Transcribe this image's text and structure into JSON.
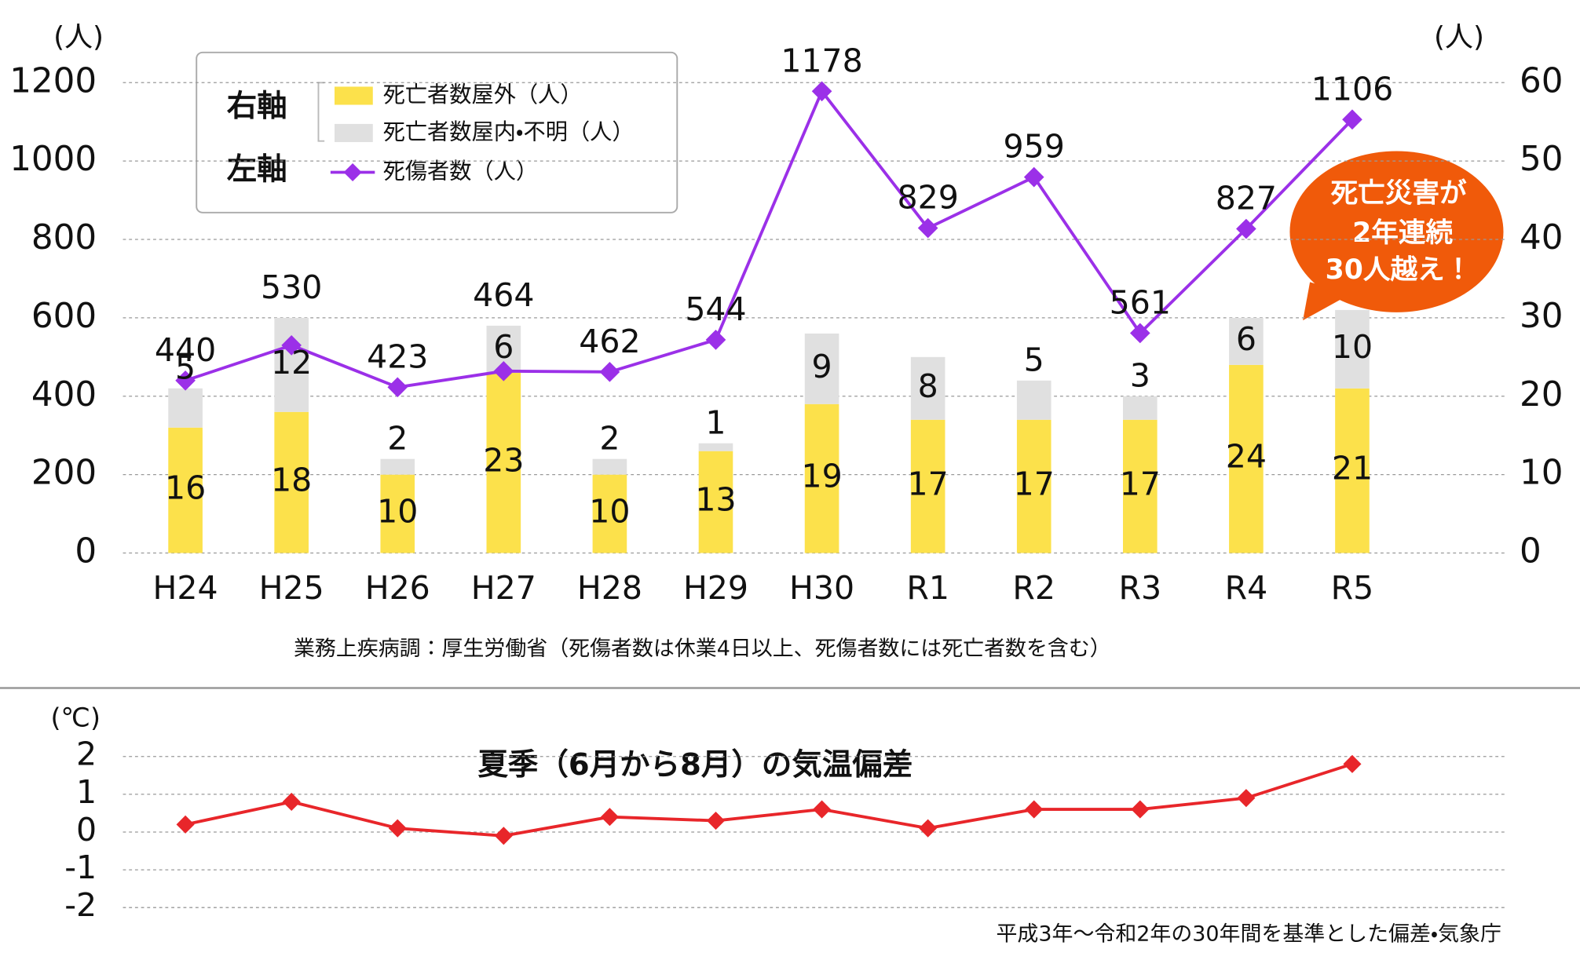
{
  "chart_data": [
    {
      "type": "combo",
      "categories": [
        "H24",
        "H25",
        "H26",
        "H27",
        "H28",
        "H29",
        "H30",
        "R1",
        "R2",
        "R3",
        "R4",
        "R5"
      ],
      "series": [
        {
          "name": "死亡者数屋外（人）",
          "type": "bar",
          "axis": "y2",
          "color": "#fce14b",
          "values": [
            16,
            18,
            10,
            23,
            10,
            13,
            19,
            17,
            17,
            17,
            24,
            21
          ]
        },
        {
          "name": "死亡者数屋内・不明（人）",
          "type": "bar",
          "axis": "y2",
          "color": "#e0e0e0",
          "values": [
            5,
            12,
            2,
            6,
            2,
            1,
            9,
            8,
            5,
            3,
            6,
            10
          ]
        },
        {
          "name": "死傷者数（人）",
          "type": "line",
          "axis": "y",
          "color": "#9b30e8",
          "values": [
            440,
            530,
            423,
            464,
            462,
            544,
            1178,
            829,
            959,
            561,
            827,
            1106
          ]
        }
      ],
      "legend_groups": [
        "右軸",
        "左軸"
      ],
      "ylabel": "(人)",
      "y2label": "(人)",
      "ylim": [
        0,
        1200
      ],
      "yticks": [
        0,
        200,
        400,
        600,
        800,
        1000,
        1200
      ],
      "y2lim": [
        0,
        60
      ],
      "y2ticks": [
        0,
        10,
        20,
        30,
        40,
        50,
        60
      ],
      "grid": true,
      "annotation": [
        "死亡災害が",
        "2年連続",
        "30人越え！"
      ],
      "source": "業務上疾病調：厚生労働省（死傷者数は休業4日以上、死傷者数には死亡者数を含む）"
    },
    {
      "type": "line",
      "title": "夏季（6月から8月）の気温偏差",
      "ylabel": "(℃)",
      "categories": [
        null,
        null,
        null,
        null,
        null,
        null,
        null,
        null,
        null,
        null,
        null,
        null
      ],
      "values": [
        0.2,
        0.8,
        0.1,
        -0.1,
        0.4,
        0.3,
        0.6,
        0.1,
        0.6,
        0.6,
        0.9,
        1.8
      ],
      "color": "#e8262a",
      "ylim": [
        -2,
        2
      ],
      "yticks": [
        -2,
        -1,
        0,
        1,
        2
      ],
      "grid": true,
      "source": "平成3年〜令和2年の30年間を基準とした偏差・気象庁"
    }
  ]
}
